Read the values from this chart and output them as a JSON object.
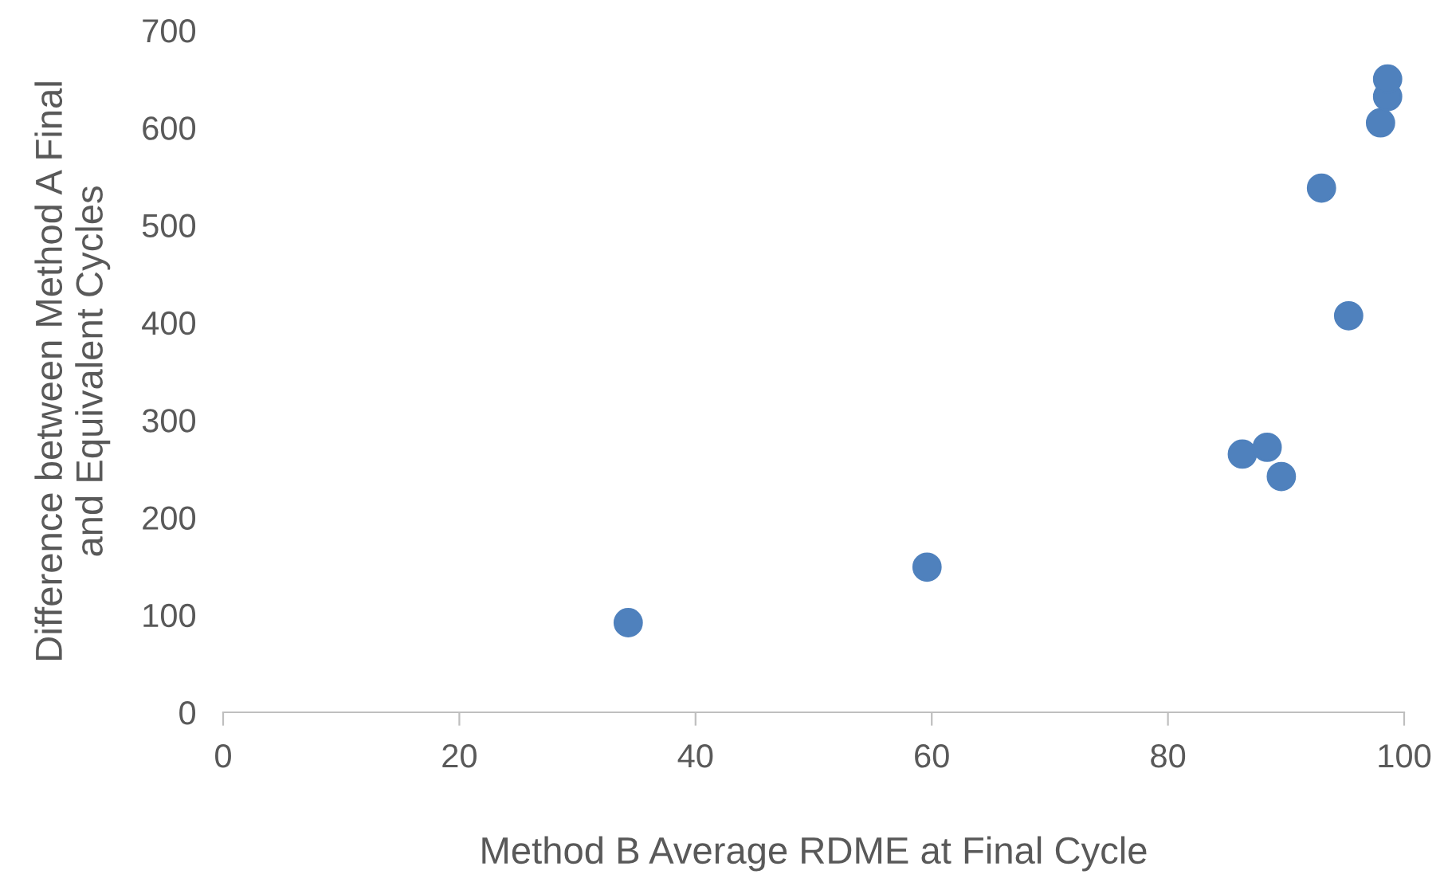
{
  "chart_data": {
    "type": "scatter",
    "xlabel": "Method B Average RDME at Final Cycle",
    "ylabel": "Difference between Method A Final\nand Equivalent Cycles",
    "x": [
      34.3,
      59.6,
      86.3,
      88.4,
      89.6,
      93.0,
      95.3,
      98.0,
      98.6,
      98.6
    ],
    "series": [
      {
        "color": "#4f81bd",
        "values": [
          92,
          149,
          265,
          272,
          242,
          538,
          407,
          605,
          632,
          650
        ]
      }
    ],
    "xlim": [
      0,
      100
    ],
    "xticks": [
      0,
      20,
      40,
      60,
      80,
      100
    ],
    "ylim": [
      0,
      700
    ],
    "yticks": [
      0,
      100,
      200,
      300,
      400,
      500,
      600,
      700
    ],
    "grid": false,
    "marker": "circle"
  }
}
